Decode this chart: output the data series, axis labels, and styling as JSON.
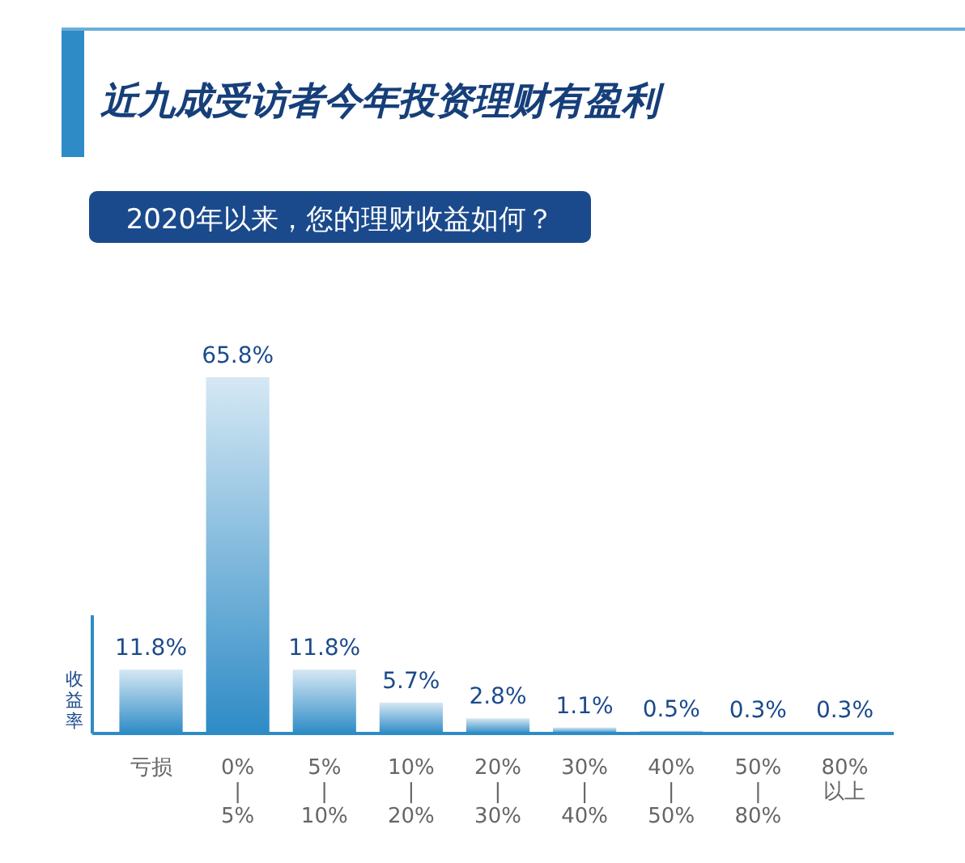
{
  "chart_data": {
    "type": "bar",
    "title": "近九成受访者今年投资理财有盈利",
    "subtitle": "2020年以来，您的理财收益如何？",
    "ylabel": "收益率",
    "categories": [
      "亏损",
      "0%\n|\n5%",
      "5%\n|\n10%",
      "10%\n|\n20%",
      "20%\n|\n30%",
      "30%\n|\n40%",
      "40%\n|\n50%",
      "50%\n|\n80%",
      "80%\n以上"
    ],
    "values": [
      11.8,
      65.8,
      11.8,
      5.7,
      2.8,
      1.1,
      0.5,
      0.3,
      0.3
    ],
    "value_labels": [
      "11.8%",
      "65.8%",
      "11.8%",
      "5.7%",
      "2.8%",
      "1.1%",
      "0.5%",
      "0.3%",
      "0.3%"
    ],
    "color": "#2e8bc6"
  }
}
